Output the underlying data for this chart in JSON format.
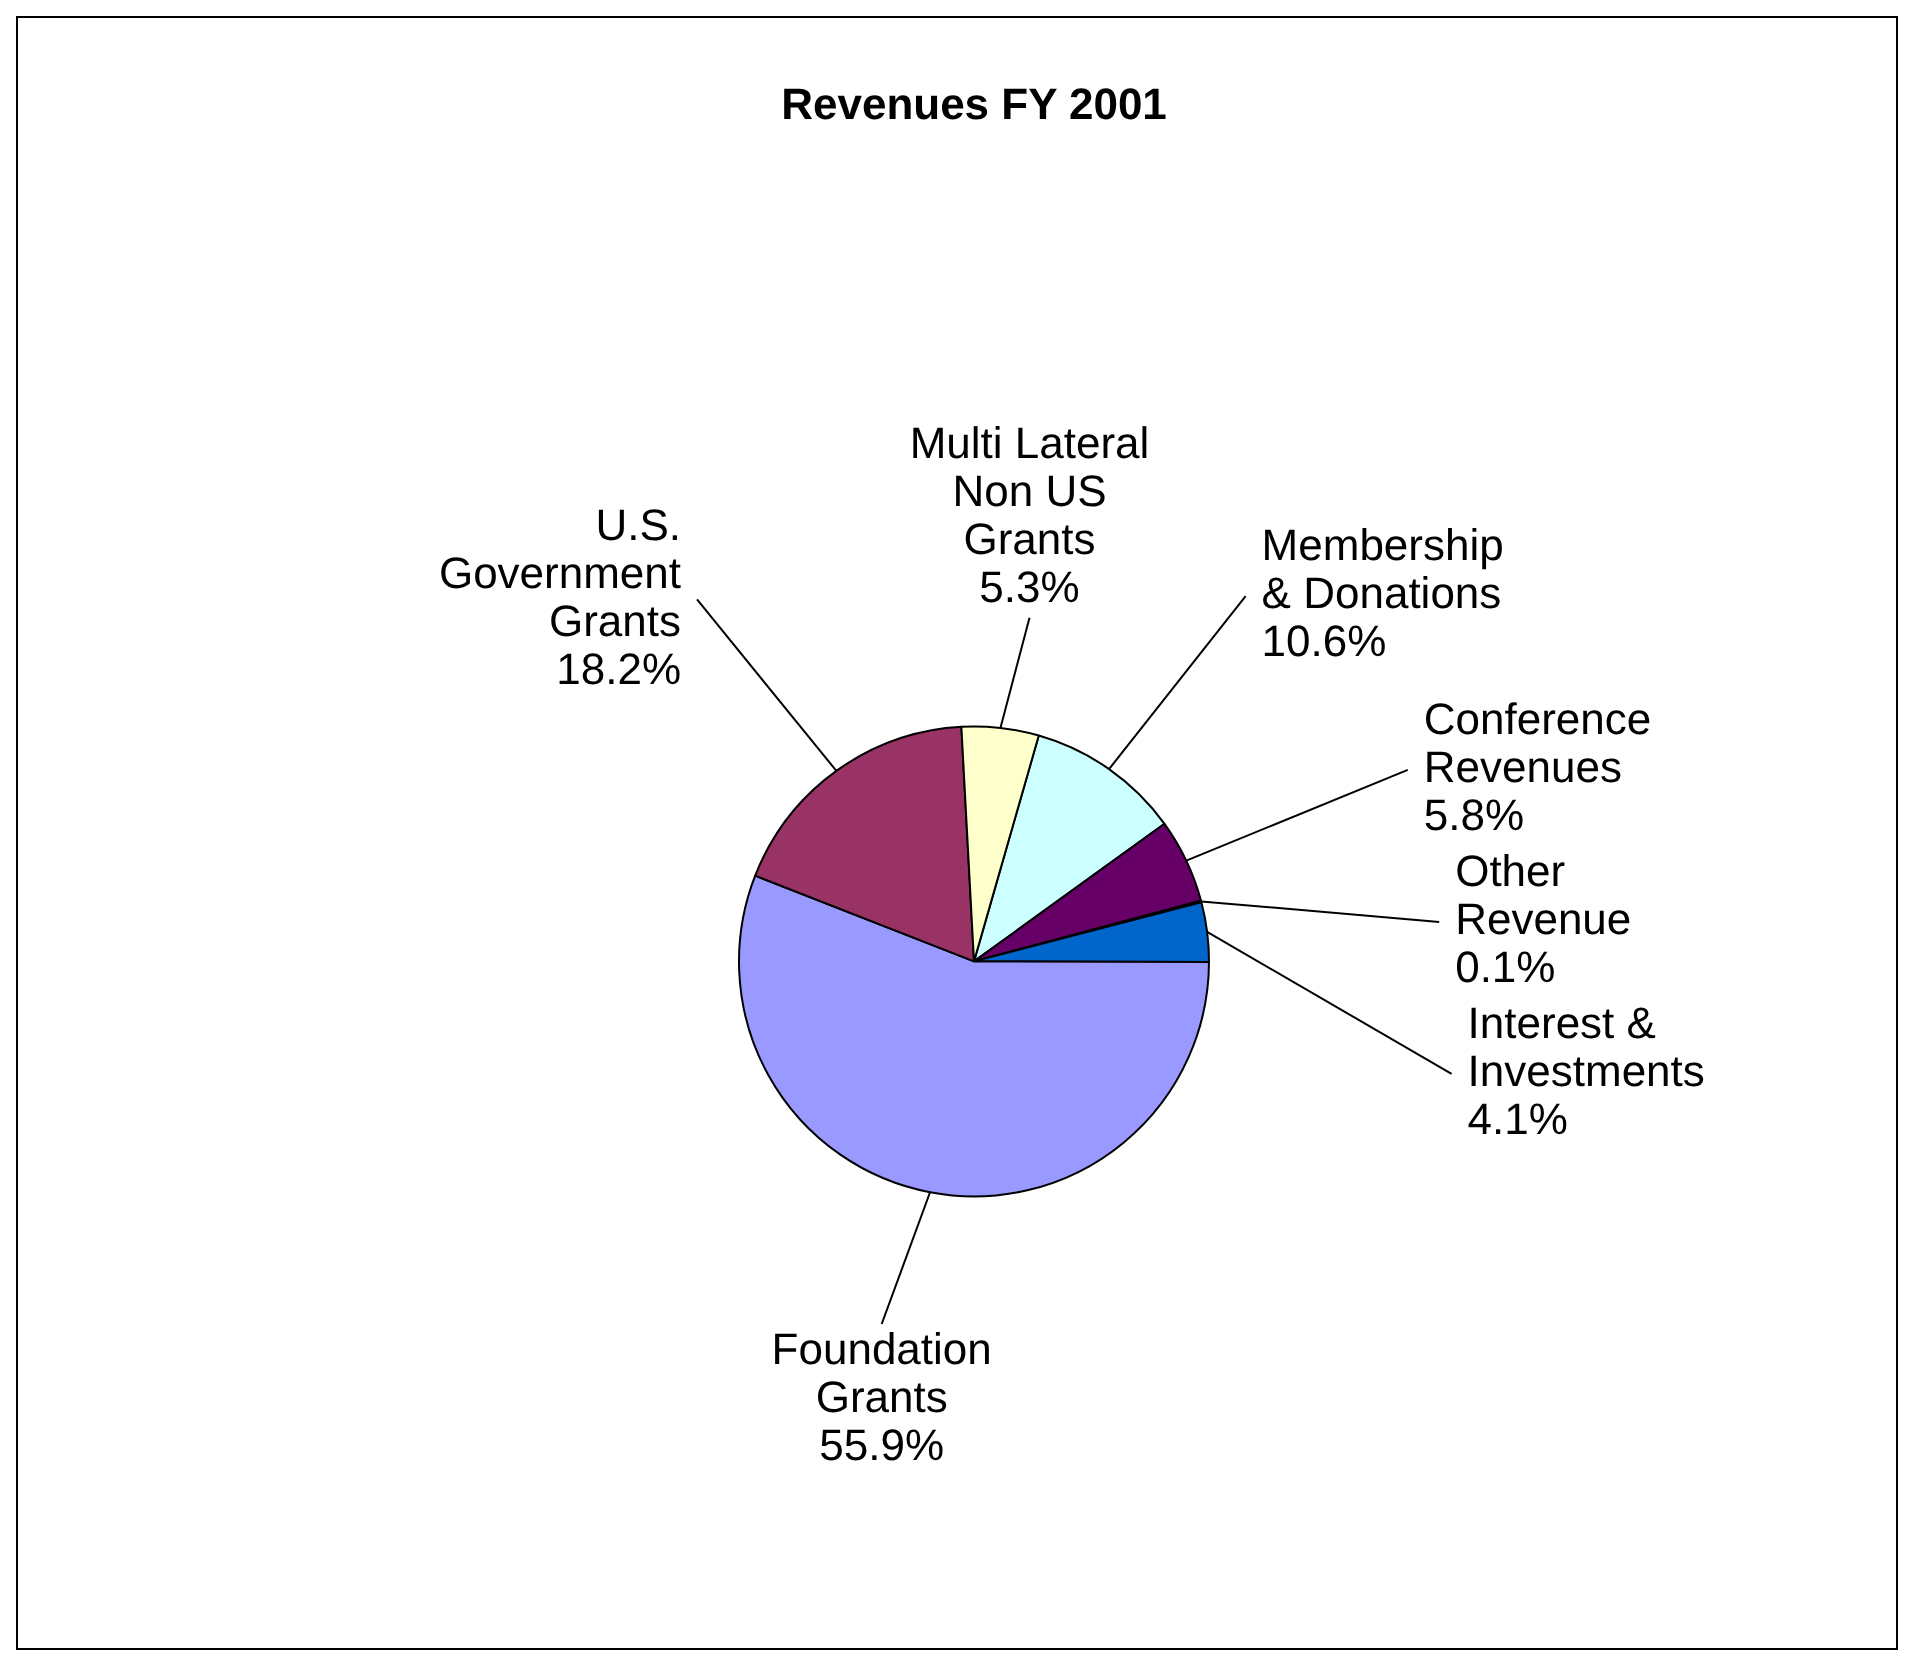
{
  "chart_data": {
    "type": "pie",
    "title": "Revenues FY 2001",
    "categories": [
      "Membership & Donations",
      "Conference Revenues",
      "Other Revenue",
      "Interest & Investments",
      "Foundation Grants",
      "U.S. Government Grants",
      "Multi Lateral Non US Grants"
    ],
    "values": [
      10.6,
      5.8,
      0.1,
      4.1,
      55.9,
      18.2,
      5.3
    ],
    "value_labels": [
      "10.6%",
      "5.8%",
      "0.1%",
      "4.1%",
      "55.9%",
      "18.2%",
      "5.3%"
    ],
    "colors": [
      "#ccffff",
      "#660066",
      "#ffffcc",
      "#0066cc",
      "#9999ff",
      "#993366",
      "#ffffcc"
    ],
    "legend": false
  }
}
